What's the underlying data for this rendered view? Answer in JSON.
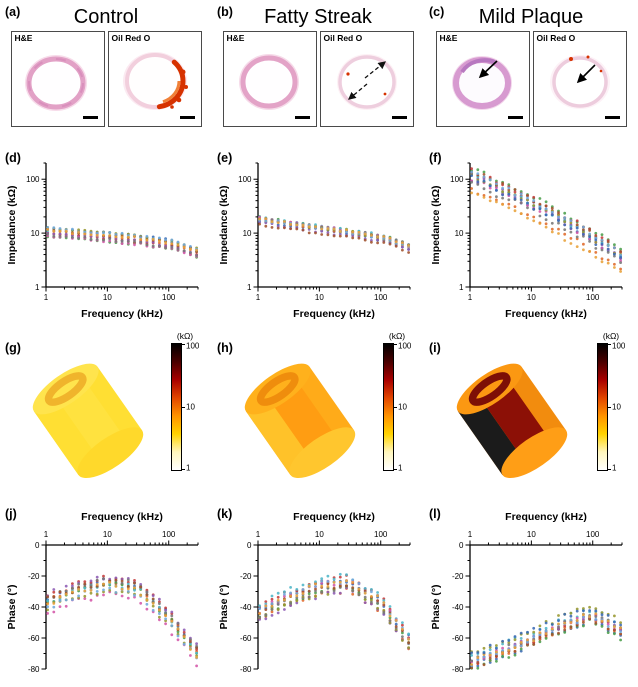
{
  "figure": {
    "panel_labels": {
      "a": "(a)",
      "b": "(b)",
      "c": "(c)",
      "d": "(d)",
      "e": "(e)",
      "f": "(f)",
      "g": "(g)",
      "h": "(h)",
      "i": "(i)",
      "j": "(j)",
      "k": "(k)",
      "l": "(l)"
    },
    "columns": [
      {
        "title": "Control"
      },
      {
        "title": "Fatty Streak"
      },
      {
        "title": "Mild Plaque"
      }
    ],
    "histology": {
      "sub_labels": [
        "H&E",
        "Oil Red O"
      ]
    },
    "colorbar": {
      "unit": "(kΩ)",
      "ticks": [
        "100",
        "10",
        "1"
      ],
      "gradient": [
        "#000000",
        "#4a0000",
        "#a80000",
        "#e24600",
        "#ff9300",
        "#ffd300",
        "#fff6bd",
        "#ffffff"
      ]
    }
  },
  "cylinders": {
    "g": {
      "body": "#ffdf33",
      "band_left": "#ffdf33",
      "band_mid": "#ffe23f",
      "bottom": "#ffd92b",
      "top": "#ffe44d",
      "ring": "#f0b42c"
    },
    "h": {
      "body": "#ffab19",
      "band_left": "#ffc229",
      "band_mid": "#ff9d12",
      "bottom": "#ffc62e",
      "top": "#ffb11c",
      "ring": "#ef8d0d"
    },
    "i": {
      "body": "#f28c0e",
      "band_left": "#1b1b1b",
      "band_mid": "#8c1006",
      "bottom": "#ff9e16",
      "top": "#fb9812",
      "ring": "#7d0f06"
    }
  },
  "palette": [
    "#3a6ab4",
    "#e06a2a",
    "#4b9e4b",
    "#c43b3b",
    "#8d5bb4",
    "#4fb6c8",
    "#d457a8",
    "#97972f",
    "#777777",
    "#a0522d",
    "#6fa8dc",
    "#e8a23a"
  ],
  "chart_data": [
    {
      "id": "d",
      "type": "scatter",
      "group": "Control",
      "xlabel": "Frequency (kHz)",
      "ylabel": "Impedance (kΩ)",
      "xscale": "log",
      "yscale": "log",
      "xlim": [
        1,
        300
      ],
      "ylim": [
        1,
        200
      ],
      "xticks": [
        1,
        10,
        100
      ],
      "yticks": [
        1,
        10,
        100
      ],
      "axis_pos": "bottom",
      "trend_x": [
        1,
        3,
        10,
        30,
        100,
        300
      ],
      "trend_y": [
        10.5,
        9.6,
        8.6,
        7.6,
        6.3,
        4.2
      ],
      "n_series": 12,
      "spread": 0.16,
      "noise": 0.05
    },
    {
      "id": "e",
      "type": "scatter",
      "group": "Fatty Streak",
      "xlabel": "Frequency (kHz)",
      "ylabel": "Impedance (kΩ)",
      "xscale": "log",
      "yscale": "log",
      "xlim": [
        1,
        300
      ],
      "ylim": [
        1,
        200
      ],
      "xticks": [
        1,
        10,
        100
      ],
      "yticks": [
        1,
        10,
        100
      ],
      "axis_pos": "bottom",
      "trend_x": [
        1,
        3,
        10,
        30,
        100,
        300
      ],
      "trend_y": [
        17,
        14,
        11.5,
        9.8,
        7.8,
        5.2
      ],
      "n_series": 12,
      "spread": 0.2,
      "noise": 0.05
    },
    {
      "id": "f",
      "type": "scatter",
      "group": "Mild Plaque",
      "xlabel": "Frequency (kHz)",
      "ylabel": "Impedance (kΩ)",
      "xscale": "log",
      "yscale": "log",
      "xlim": [
        1,
        300
      ],
      "ylim": [
        1,
        200
      ],
      "xticks": [
        1,
        10,
        100
      ],
      "yticks": [
        1,
        10,
        100
      ],
      "axis_pos": "bottom",
      "trend_x": [
        1,
        3,
        10,
        30,
        100,
        300
      ],
      "trend_y": [
        90,
        50,
        27,
        13.5,
        6,
        2.6
      ],
      "n_series": 13,
      "spread": 0.5,
      "noise": 0.1
    },
    {
      "id": "j",
      "type": "scatter",
      "group": "Control",
      "xlabel": "Frequency (kHz)",
      "ylabel": "Phase (°)",
      "xscale": "log",
      "yscale": "linear",
      "xlim": [
        1,
        300
      ],
      "ylim": [
        -80,
        0
      ],
      "xticks": [
        1,
        10,
        100
      ],
      "yticks": [
        0,
        -20,
        -40,
        -60,
        -80
      ],
      "axis_pos": "top",
      "trend_x": [
        1,
        3,
        10,
        30,
        100,
        300
      ],
      "trend_y": [
        -38,
        -31,
        -26,
        -29,
        -48,
        -72
      ],
      "n_series": 12,
      "spread": 12,
      "noise": 4
    },
    {
      "id": "k",
      "type": "scatter",
      "group": "Fatty Streak",
      "xlabel": "Frequency (kHz)",
      "ylabel": "Phase (°)",
      "xscale": "log",
      "yscale": "linear",
      "xlim": [
        1,
        300
      ],
      "ylim": [
        -80,
        0
      ],
      "xticks": [
        1,
        10,
        100
      ],
      "yticks": [
        0,
        -20,
        -40,
        -60,
        -80
      ],
      "axis_pos": "top",
      "trend_x": [
        1,
        3,
        10,
        30,
        100,
        300
      ],
      "trend_y": [
        -45,
        -35,
        -28,
        -25,
        -38,
        -63
      ],
      "n_series": 12,
      "spread": 12,
      "noise": 4
    },
    {
      "id": "l",
      "type": "scatter",
      "group": "Mild Plaque",
      "xlabel": "Frequency (kHz)",
      "ylabel": "Phase (°)",
      "xscale": "log",
      "yscale": "linear",
      "xlim": [
        1,
        300
      ],
      "ylim": [
        -80,
        0
      ],
      "xticks": [
        1,
        10,
        100
      ],
      "yticks": [
        0,
        -20,
        -40,
        -60,
        -80
      ],
      "axis_pos": "top",
      "trend_x": [
        1,
        3,
        10,
        30,
        100,
        300
      ],
      "trend_y": [
        -75,
        -68,
        -60,
        -51,
        -44,
        -55
      ],
      "n_series": 13,
      "spread": 13,
      "noise": 4
    }
  ]
}
